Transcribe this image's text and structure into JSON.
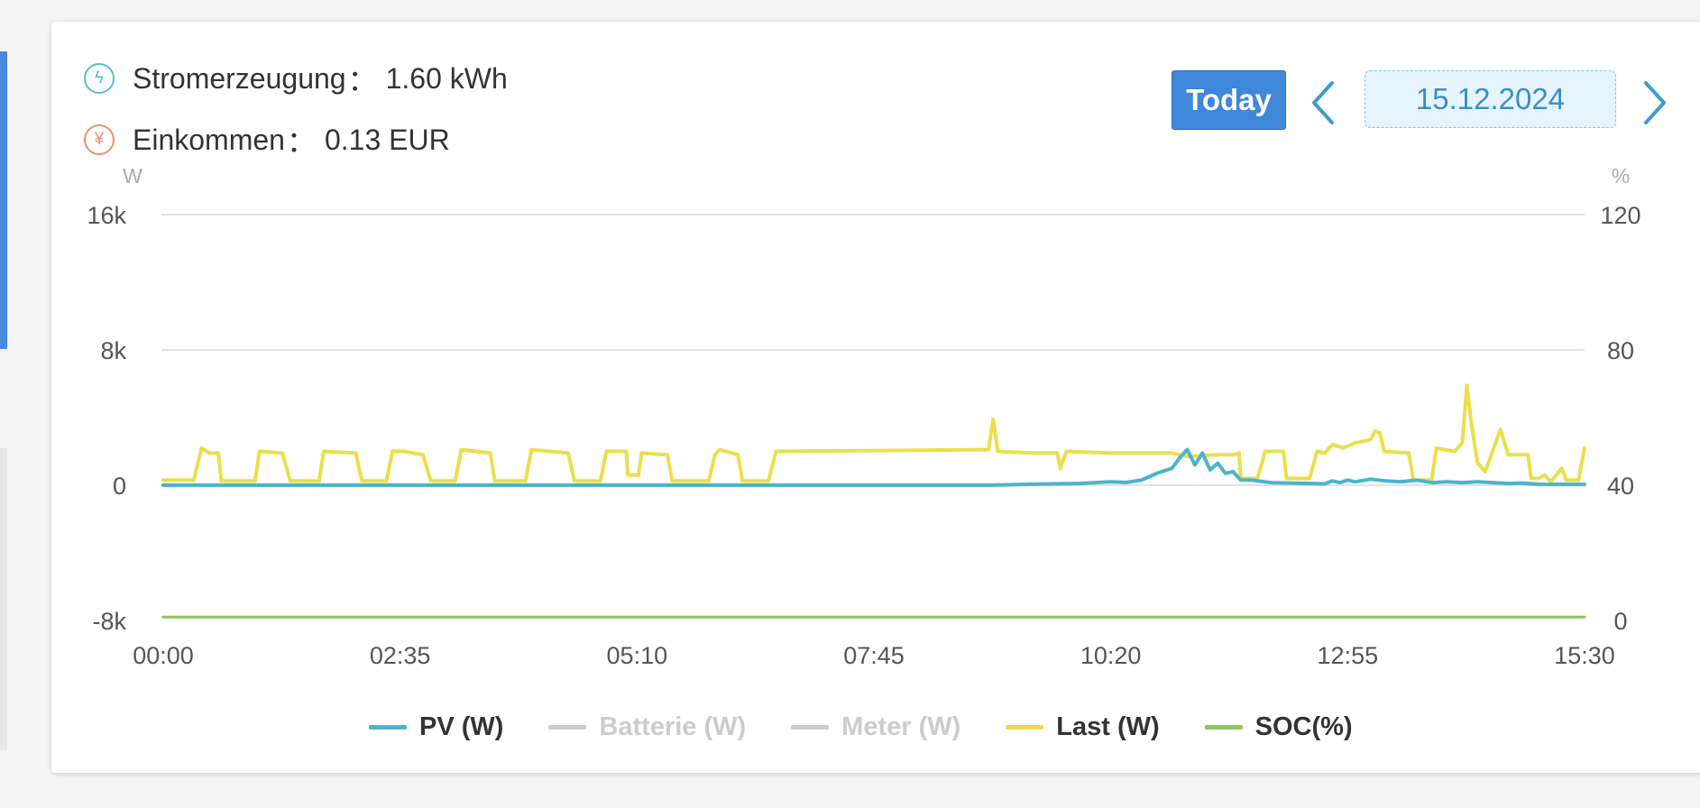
{
  "summary": {
    "generation_label": "Stromerzeugung",
    "generation_value": "1.60 kWh",
    "income_label": "Einkommen",
    "income_value": "0.13 EUR",
    "separator": "："
  },
  "header": {
    "today_label": "Today",
    "date": "15.12.2024"
  },
  "icons": {
    "generation": "lightning-icon",
    "income": "yen-icon",
    "prev": "chevron-left-icon",
    "next": "chevron-right-icon"
  },
  "colors": {
    "pv": "#4db3cc",
    "batterie": "#cccccc",
    "meter": "#cccccc",
    "last": "#eadf4a",
    "soc": "#8ec45d",
    "accent": "#3f87d9"
  },
  "chart_data": {
    "type": "line",
    "x_ticks": [
      "00:00",
      "02:35",
      "05:10",
      "07:45",
      "10:20",
      "12:55",
      "15:30"
    ],
    "x_range_minutes": [
      0,
      930
    ],
    "y_left": {
      "unit": "W",
      "ticks": [
        "16k",
        "8k",
        "0",
        "-8k"
      ],
      "range": [
        -8000,
        16000
      ]
    },
    "y_right": {
      "unit": "%",
      "ticks": [
        "120",
        "80",
        "40",
        "0"
      ],
      "range": [
        0,
        120
      ]
    },
    "grid": true,
    "legend_position": "bottom",
    "series": [
      {
        "name": "PV (W)",
        "axis": "left",
        "visible": true,
        "points": [
          [
            0,
            0
          ],
          [
            540,
            0
          ],
          [
            570,
            60
          ],
          [
            600,
            100
          ],
          [
            620,
            200
          ],
          [
            630,
            160
          ],
          [
            640,
            300
          ],
          [
            650,
            700
          ],
          [
            660,
            1000
          ],
          [
            665,
            1600
          ],
          [
            670,
            2100
          ],
          [
            675,
            1200
          ],
          [
            680,
            1900
          ],
          [
            685,
            900
          ],
          [
            690,
            1300
          ],
          [
            695,
            700
          ],
          [
            700,
            800
          ],
          [
            705,
            300
          ],
          [
            712,
            300
          ],
          [
            725,
            150
          ],
          [
            750,
            100
          ],
          [
            760,
            80
          ],
          [
            765,
            250
          ],
          [
            770,
            150
          ],
          [
            775,
            300
          ],
          [
            780,
            200
          ],
          [
            790,
            350
          ],
          [
            800,
            250
          ],
          [
            810,
            200
          ],
          [
            820,
            300
          ],
          [
            830,
            150
          ],
          [
            840,
            200
          ],
          [
            850,
            150
          ],
          [
            860,
            200
          ],
          [
            870,
            150
          ],
          [
            880,
            100
          ],
          [
            890,
            120
          ],
          [
            900,
            50
          ],
          [
            930,
            50
          ]
        ]
      },
      {
        "name": "Batterie (W)",
        "axis": "left",
        "visible": false,
        "points": []
      },
      {
        "name": "Meter (W)",
        "axis": "left",
        "visible": false,
        "points": []
      },
      {
        "name": "Last (W)",
        "axis": "left",
        "visible": true,
        "points": [
          [
            0,
            300
          ],
          [
            20,
            300
          ],
          [
            25,
            2200
          ],
          [
            30,
            1900
          ],
          [
            36,
            1900
          ],
          [
            38,
            250
          ],
          [
            60,
            250
          ],
          [
            63,
            2000
          ],
          [
            78,
            1900
          ],
          [
            83,
            250
          ],
          [
            102,
            250
          ],
          [
            105,
            2000
          ],
          [
            126,
            1900
          ],
          [
            130,
            250
          ],
          [
            146,
            250
          ],
          [
            150,
            2000
          ],
          [
            158,
            2000
          ],
          [
            170,
            1800
          ],
          [
            175,
            250
          ],
          [
            191,
            250
          ],
          [
            195,
            2100
          ],
          [
            214,
            1900
          ],
          [
            217,
            250
          ],
          [
            237,
            250
          ],
          [
            241,
            2100
          ],
          [
            265,
            1900
          ],
          [
            269,
            250
          ],
          [
            286,
            250
          ],
          [
            290,
            2000
          ],
          [
            303,
            2000
          ],
          [
            304,
            600
          ],
          [
            311,
            600
          ],
          [
            313,
            1900
          ],
          [
            330,
            1800
          ],
          [
            333,
            250
          ],
          [
            357,
            250
          ],
          [
            361,
            1800
          ],
          [
            364,
            2100
          ],
          [
            376,
            1800
          ],
          [
            379,
            250
          ],
          [
            396,
            250
          ],
          [
            401,
            2000
          ],
          [
            540,
            2100
          ],
          [
            543,
            3900
          ],
          [
            546,
            2000
          ],
          [
            570,
            1900
          ],
          [
            585,
            1900
          ],
          [
            587,
            1000
          ],
          [
            591,
            2000
          ],
          [
            620,
            1900
          ],
          [
            660,
            1900
          ],
          [
            670,
            1700
          ],
          [
            690,
            1800
          ],
          [
            700,
            1800
          ],
          [
            704,
            1900
          ],
          [
            705,
            400
          ],
          [
            716,
            400
          ],
          [
            721,
            2000
          ],
          [
            733,
            2000
          ],
          [
            735,
            400
          ],
          [
            750,
            400
          ],
          [
            755,
            2000
          ],
          [
            760,
            1900
          ],
          [
            765,
            2400
          ],
          [
            772,
            2200
          ],
          [
            780,
            2500
          ],
          [
            785,
            2600
          ],
          [
            790,
            2700
          ],
          [
            793,
            3200
          ],
          [
            796,
            3100
          ],
          [
            799,
            2000
          ],
          [
            815,
            1900
          ],
          [
            818,
            300
          ],
          [
            825,
            300
          ],
          [
            830,
            300
          ],
          [
            833,
            2200
          ],
          [
            845,
            2000
          ],
          [
            850,
            2500
          ],
          [
            853,
            5900
          ],
          [
            856,
            3600
          ],
          [
            860,
            1300
          ],
          [
            865,
            800
          ],
          [
            875,
            3300
          ],
          [
            880,
            1800
          ],
          [
            893,
            1800
          ],
          [
            895,
            400
          ],
          [
            900,
            400
          ],
          [
            904,
            600
          ],
          [
            908,
            200
          ],
          [
            915,
            1000
          ],
          [
            918,
            300
          ],
          [
            926,
            300
          ],
          [
            930,
            2200
          ]
        ]
      },
      {
        "name": "SOC(%)",
        "axis": "right",
        "visible": true,
        "points": [
          [
            0,
            1
          ],
          [
            930,
            1
          ]
        ]
      }
    ]
  }
}
